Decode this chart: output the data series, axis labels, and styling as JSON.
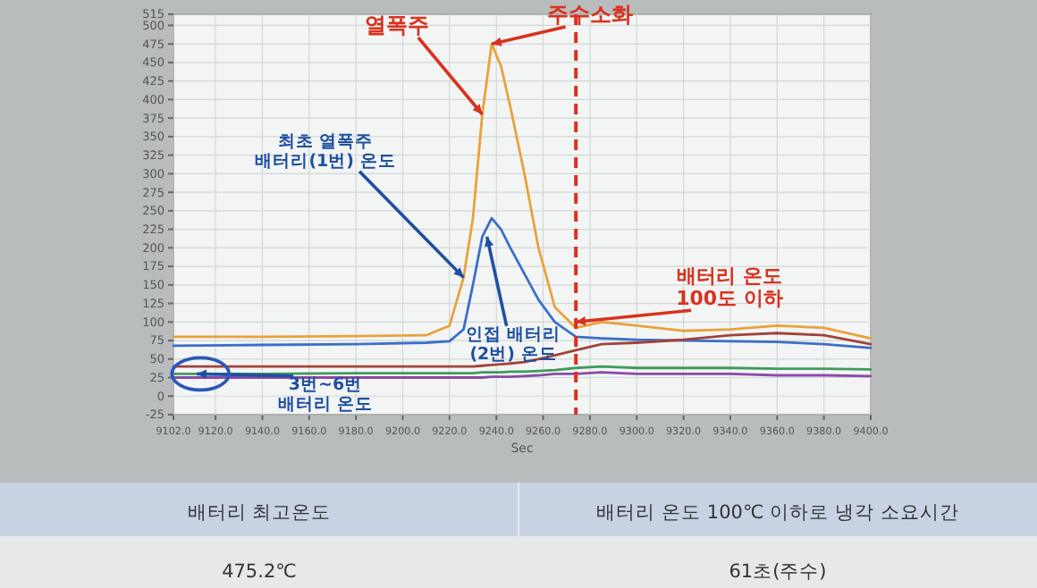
{
  "chart_data": {
    "type": "line",
    "xlabel": "Sec",
    "x": [
      9102,
      9140,
      9180,
      9210,
      9220,
      9226,
      9230,
      9234,
      9238,
      9242,
      9246,
      9252,
      9258,
      9265,
      9274,
      9285,
      9300,
      9320,
      9340,
      9360,
      9380,
      9400
    ],
    "series": [
      {
        "color": "#e8a23a",
        "values": [
          80,
          80,
          81,
          82,
          95,
          160,
          240,
          380,
          475,
          445,
          390,
          300,
          200,
          120,
          92,
          100,
          95,
          88,
          90,
          95,
          92,
          78
        ]
      },
      {
        "color": "#3b6fc8",
        "values": [
          68,
          69,
          70,
          72,
          74,
          90,
          150,
          215,
          240,
          225,
          200,
          165,
          130,
          100,
          80,
          78,
          76,
          75,
          74,
          73,
          70,
          65
        ]
      },
      {
        "color": "#a0433a",
        "values": [
          40,
          40,
          40,
          40,
          40,
          40,
          40,
          41,
          42,
          43,
          44,
          46,
          50,
          55,
          62,
          70,
          72,
          76,
          82,
          85,
          82,
          70
        ]
      },
      {
        "color": "#3f9a5a",
        "values": [
          30,
          30,
          31,
          31,
          31,
          31,
          31,
          32,
          32,
          32,
          33,
          33,
          34,
          35,
          38,
          40,
          38,
          38,
          38,
          37,
          37,
          36
        ]
      },
      {
        "color": "#8a4aa8",
        "values": [
          25,
          25,
          25,
          25,
          25,
          25,
          25,
          25,
          26,
          26,
          26,
          27,
          28,
          30,
          30,
          32,
          30,
          30,
          30,
          28,
          28,
          27
        ]
      }
    ],
    "xlim": [
      9102,
      9400
    ],
    "xticks": [
      {
        "value": 9102,
        "label": "9102.0"
      },
      {
        "value": 9120,
        "label": "9120.0"
      },
      {
        "value": 9140,
        "label": "9140.0"
      },
      {
        "value": 9160,
        "label": "9160.0"
      },
      {
        "value": 9180,
        "label": "9180.0"
      },
      {
        "value": 9200,
        "label": "9200.0"
      },
      {
        "value": 9220,
        "label": "9220.0"
      },
      {
        "value": 9240,
        "label": "9240.0"
      },
      {
        "value": 9260,
        "label": "9260.0"
      },
      {
        "value": 9280,
        "label": "9280.0"
      },
      {
        "value": 9300,
        "label": "9300.0"
      },
      {
        "value": 9320,
        "label": "9320.0"
      },
      {
        "value": 9340,
        "label": "9340.0"
      },
      {
        "value": 9360,
        "label": "9360.0"
      },
      {
        "value": 9380,
        "label": "9380.0"
      },
      {
        "value": 9400,
        "label": "9400.0"
      }
    ],
    "ylim": [
      -25,
      515
    ],
    "yticks": [
      -25,
      0,
      25,
      50,
      75,
      100,
      125,
      150,
      175,
      200,
      225,
      250,
      275,
      300,
      325,
      350,
      375,
      400,
      425,
      450,
      475,
      500,
      515
    ],
    "grid": true,
    "ref_lines": [
      {
        "axis": "x",
        "value": 9274,
        "color": "#d9321f",
        "line_style": "dashed"
      }
    ],
    "annotations": [
      {
        "text": "주수소화",
        "x": 9238,
        "y": 475
      },
      {
        "text": "열폭주",
        "x": 9234,
        "y": 380
      },
      {
        "text": "최초 열폭주\n배터리(1번) 온도",
        "x": 9226,
        "y": 160
      },
      {
        "text": "인접 배터리\n(2번) 온도",
        "x": 9236,
        "y": 215
      },
      {
        "text": "배터리 온도\n100도 이하",
        "x": 9274,
        "y": 100
      },
      {
        "text": "3번~6번\n배터리 온도",
        "x": 9112,
        "y": 30
      },
      "배터리 최고온도",
      "475.2℃",
      "배터리 온도 100℃ 이하로 냉각 소요시간",
      "61초(주수)"
    ]
  }
}
